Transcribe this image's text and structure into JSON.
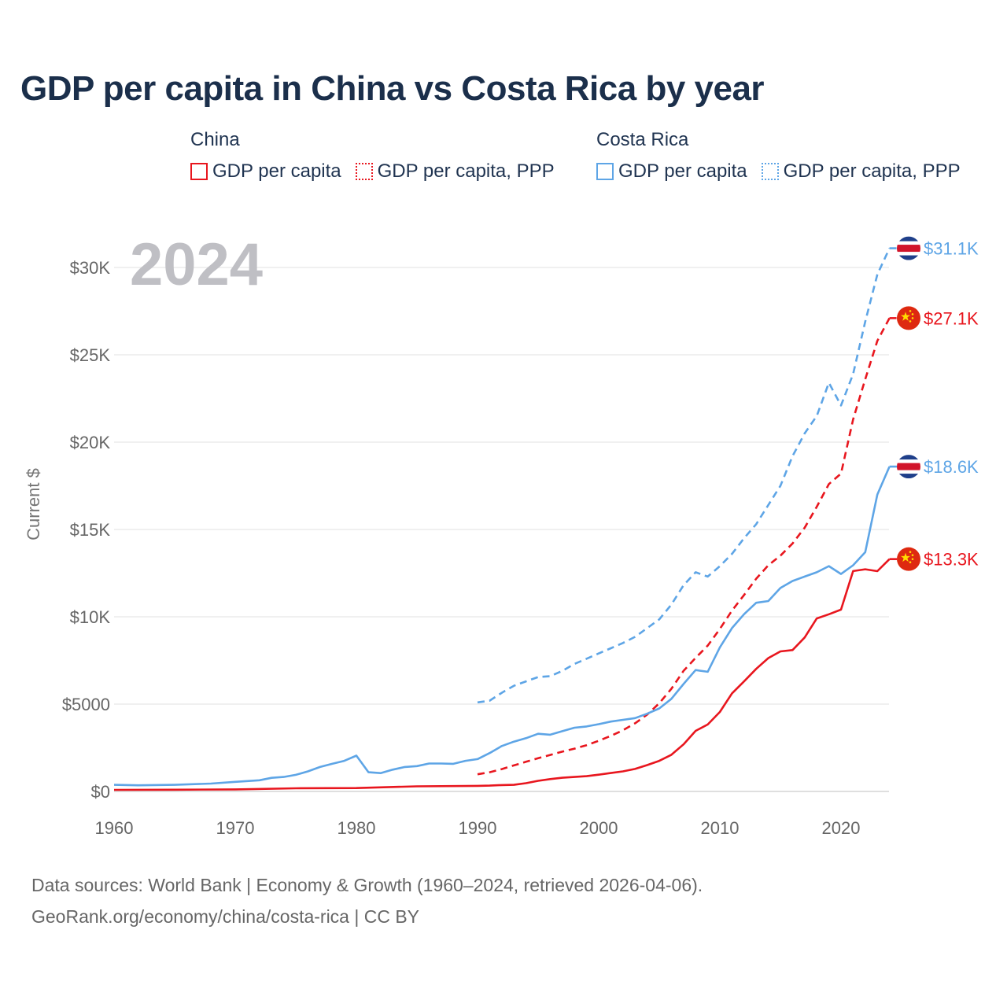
{
  "title": "GDP per capita in China vs Costa Rica by year",
  "legend": {
    "groups": [
      {
        "name": "China",
        "items": [
          {
            "label": "GDP per capita",
            "style": "solid",
            "color": "#e8161e"
          },
          {
            "label": "GDP per capita, PPP",
            "style": "dotted",
            "color": "#e8161e"
          }
        ]
      },
      {
        "name": "Costa Rica",
        "items": [
          {
            "label": "GDP per capita",
            "style": "solid",
            "color": "#5ea5e6"
          },
          {
            "label": "GDP per capita, PPP",
            "style": "dotted",
            "color": "#5ea5e6"
          }
        ]
      }
    ]
  },
  "source_line1": "Data sources: World Bank | Economy & Growth (1960–2024, retrieved 2026-04-06).",
  "source_line2": "GeoRank.org/economy/china/costa-rica | CC BY",
  "chart_data": {
    "type": "line",
    "title": "GDP per capita in China vs Costa Rica by year",
    "ylabel": "Current $",
    "xlabel": "",
    "year_label": "2024",
    "xlim": [
      1960,
      2024
    ],
    "ylim": [
      0,
      31000
    ],
    "x_ticks": [
      1960,
      1970,
      1980,
      1990,
      2000,
      2010,
      2020
    ],
    "x_tick_labels": [
      "1960",
      "1970",
      "1980",
      "1990",
      "2000",
      "2010",
      "2020"
    ],
    "y_ticks": [
      0,
      5000,
      10000,
      15000,
      20000,
      25000,
      30000
    ],
    "y_tick_labels": [
      "$0",
      "$5000",
      "$10K",
      "$15K",
      "$20K",
      "$25K",
      "$30K"
    ],
    "series": [
      {
        "name": "China GDP per capita",
        "country": "China",
        "dashed": false,
        "color": "#e8161e",
        "end_label": "$13.3K",
        "flag": "china",
        "x": [
          1960,
          1965,
          1970,
          1975,
          1980,
          1985,
          1990,
          1991,
          1992,
          1993,
          1994,
          1995,
          1996,
          1997,
          1998,
          1999,
          2000,
          2001,
          2002,
          2003,
          2004,
          2005,
          2006,
          2007,
          2008,
          2009,
          2010,
          2011,
          2012,
          2013,
          2014,
          2015,
          2016,
          2017,
          2018,
          2019,
          2020,
          2021,
          2022,
          2023,
          2024
        ],
        "values": [
          90,
          100,
          115,
          180,
          195,
          295,
          318,
          333,
          366,
          377,
          473,
          610,
          709,
          782,
          829,
          873,
          959,
          1053,
          1149,
          1289,
          1509,
          1753,
          2099,
          2694,
          3468,
          3832,
          4550,
          5614,
          6301,
          7020,
          7636,
          8016,
          8094,
          8817,
          9905,
          10144,
          10409,
          12617,
          12720,
          12614,
          13303
        ]
      },
      {
        "name": "China GDP per capita, PPP",
        "country": "China",
        "dashed": true,
        "color": "#e8161e",
        "end_label": "$27.1K",
        "flag": "china",
        "x": [
          1990,
          1991,
          1992,
          1993,
          1994,
          1995,
          1996,
          1997,
          1998,
          1999,
          2000,
          2001,
          2002,
          2003,
          2004,
          2005,
          2006,
          2007,
          2008,
          2009,
          2010,
          2011,
          2012,
          2013,
          2014,
          2015,
          2016,
          2017,
          2018,
          2019,
          2020,
          2021,
          2022,
          2023,
          2024
        ],
        "values": [
          980,
          1100,
          1280,
          1490,
          1700,
          1900,
          2090,
          2280,
          2450,
          2650,
          2900,
          3180,
          3500,
          3900,
          4400,
          5050,
          5880,
          6900,
          7650,
          8350,
          9300,
          10350,
          11250,
          12180,
          12950,
          13500,
          14200,
          15100,
          16300,
          17600,
          18200,
          21300,
          23600,
          25800,
          27100
        ]
      },
      {
        "name": "Costa Rica GDP per capita",
        "country": "Costa Rica",
        "dashed": false,
        "color": "#5ea5e6",
        "end_label": "$18.6K",
        "flag": "costa-rica",
        "x": [
          1960,
          1962,
          1965,
          1968,
          1970,
          1972,
          1973,
          1974,
          1975,
          1976,
          1977,
          1978,
          1979,
          1980,
          1981,
          1982,
          1983,
          1984,
          1985,
          1986,
          1987,
          1988,
          1989,
          1990,
          1991,
          1992,
          1993,
          1994,
          1995,
          1996,
          1997,
          1998,
          1999,
          2000,
          2001,
          2002,
          2003,
          2004,
          2005,
          2006,
          2007,
          2008,
          2009,
          2010,
          2011,
          2012,
          2013,
          2014,
          2015,
          2016,
          2017,
          2018,
          2019,
          2020,
          2021,
          2022,
          2023,
          2024
        ],
        "values": [
          380,
          350,
          380,
          450,
          550,
          640,
          780,
          830,
          950,
          1150,
          1400,
          1580,
          1750,
          2050,
          1100,
          1050,
          1250,
          1400,
          1450,
          1600,
          1600,
          1580,
          1750,
          1850,
          2200,
          2600,
          2850,
          3050,
          3300,
          3250,
          3450,
          3650,
          3720,
          3850,
          4000,
          4100,
          4200,
          4450,
          4750,
          5300,
          6150,
          6950,
          6850,
          8250,
          9350,
          10150,
          10800,
          10900,
          11650,
          12050,
          12300,
          12550,
          12900,
          12450,
          12950,
          13700,
          17000,
          18600
        ]
      },
      {
        "name": "Costa Rica GDP per capita, PPP",
        "country": "Costa Rica",
        "dashed": true,
        "color": "#5ea5e6",
        "end_label": "$31.1K",
        "flag": "costa-rica",
        "x": [
          1990,
          1991,
          1992,
          1993,
          1994,
          1995,
          1996,
          1997,
          1998,
          1999,
          2000,
          2001,
          2002,
          2003,
          2004,
          2005,
          2006,
          2007,
          2008,
          2009,
          2010,
          2011,
          2012,
          2013,
          2014,
          2015,
          2016,
          2017,
          2018,
          2019,
          2020,
          2021,
          2022,
          2023,
          2024
        ],
        "values": [
          5100,
          5200,
          5650,
          6050,
          6300,
          6550,
          6600,
          6900,
          7300,
          7600,
          7900,
          8200,
          8500,
          8850,
          9350,
          9850,
          10700,
          11800,
          12550,
          12300,
          12900,
          13600,
          14500,
          15300,
          16400,
          17500,
          19200,
          20500,
          21500,
          23400,
          22100,
          23900,
          26900,
          29600,
          31100
        ]
      }
    ]
  }
}
